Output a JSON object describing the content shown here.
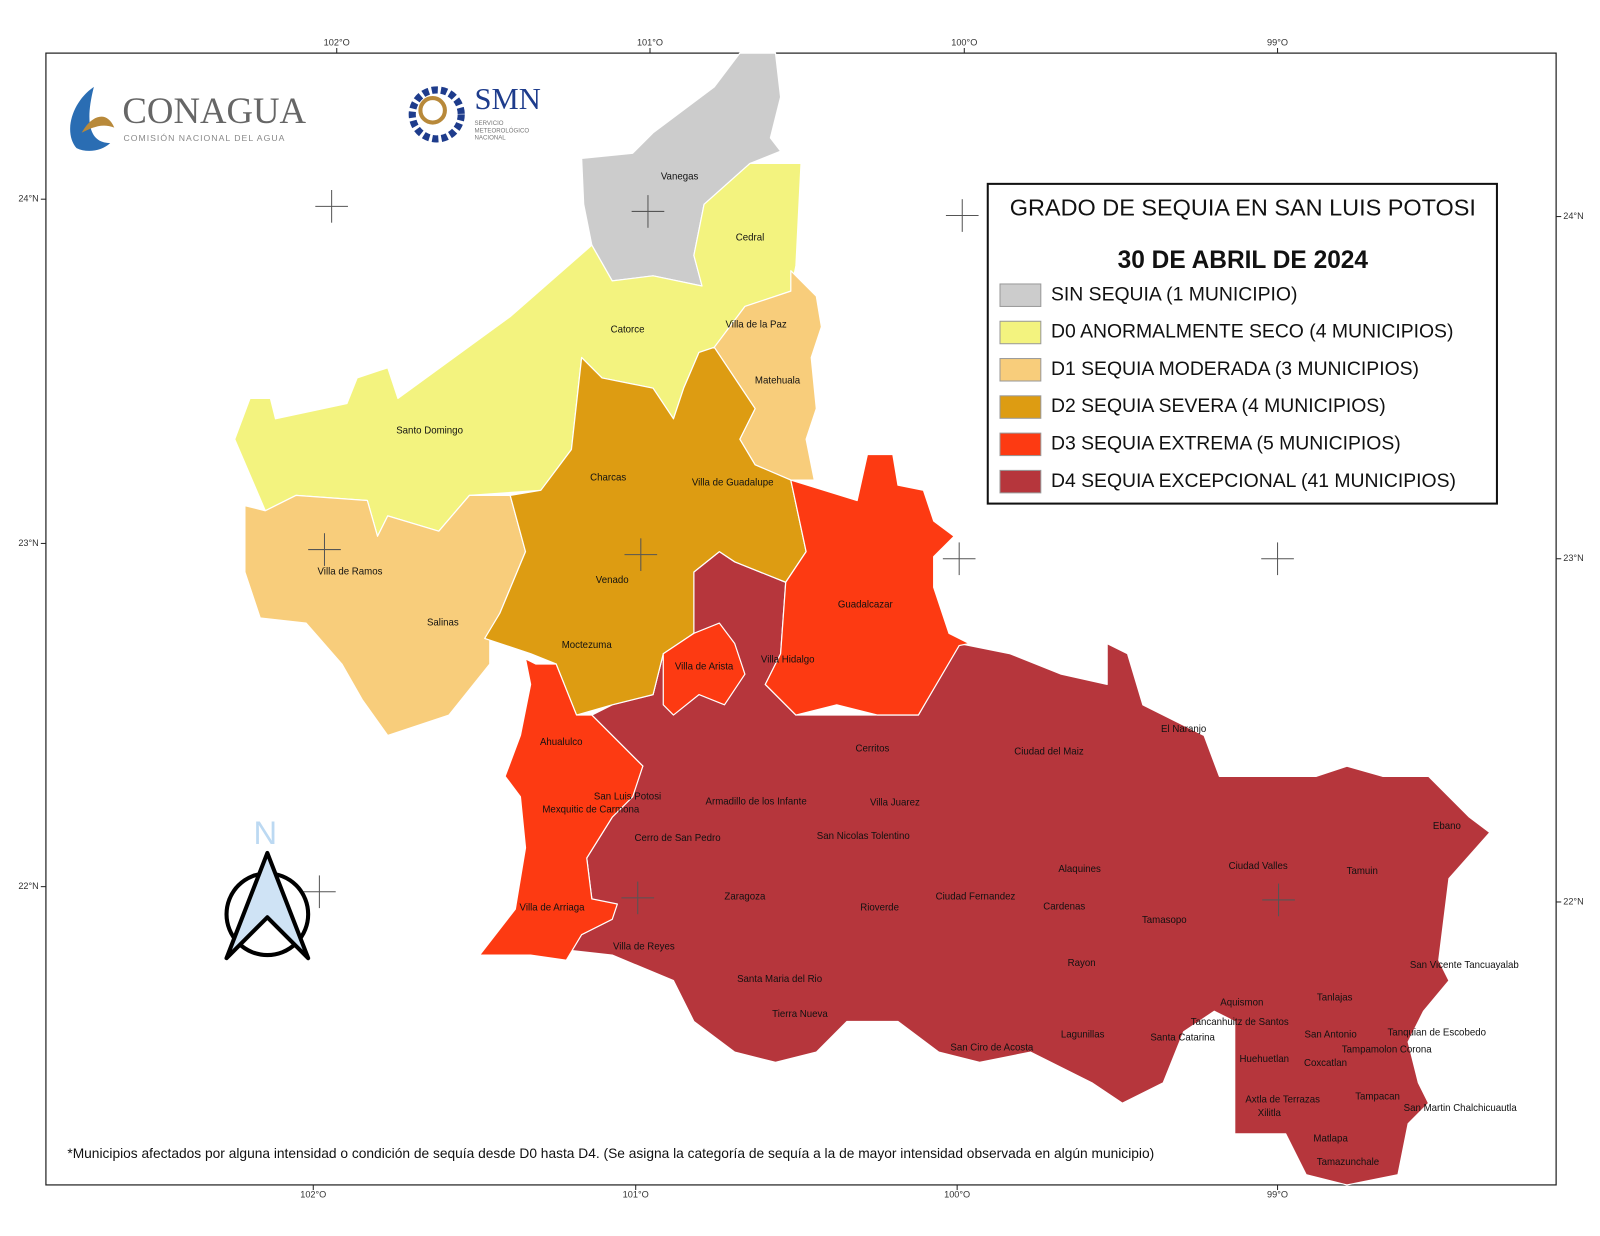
{
  "header": {
    "conagua": "CONAGUA",
    "conagua_sub": "COMISIÓN NACIONAL DEL AGUA",
    "smn": "SMN",
    "smn_sub": [
      "SERVICIO",
      "METEOROLÓGICO",
      "NACIONAL"
    ]
  },
  "legend": {
    "title": "GRADO DE SEQUIA EN SAN LUIS POTOSI",
    "date": "30 DE ABRIL DE 2024",
    "items": [
      {
        "label": "SIN SEQUIA  (1 MUNICIPIO)",
        "color": "#cccccc"
      },
      {
        "label": "D0  ANORMALMENTE SECO  (4 MUNICIPIOS)",
        "color": "#f3f37f"
      },
      {
        "label": "D1  SEQUIA MODERADA  (3 MUNICIPIOS)",
        "color": "#f8cd7b"
      },
      {
        "label": "D2  SEQUIA SEVERA  (4 MUNICIPIOS)",
        "color": "#dd9c12"
      },
      {
        "label": "D3  SEQUIA EXTREMA  (5 MUNICIPIOS)",
        "color": "#fd3a12"
      },
      {
        "label": "D4  SEQUIA EXCEPCIONAL (41 MUNICIPIOS)",
        "color": "#b6363c"
      }
    ]
  },
  "graticule": {
    "top": [
      "102°O",
      "101°O",
      "100°O",
      "99°O"
    ],
    "bottom": [
      "102°O",
      "101°O",
      "100°O",
      "99°O"
    ],
    "left": [
      "24°N",
      "23°N",
      "22°N"
    ],
    "right": [
      "24°N",
      "23°N",
      "22°N"
    ]
  },
  "north": "N",
  "municipalities": [
    "Vanegas",
    "Cedral",
    "Catorce",
    "Villa de la Paz",
    "Matehuala",
    "Santo Domingo",
    "Charcas",
    "Villa de Guadalupe",
    "Villa de Ramos",
    "Venado",
    "Salinas",
    "Guadalcazar",
    "Moctezuma",
    "Villa Hidalgo",
    "Villa de Arista",
    "El Naranjo",
    "Ahualulco",
    "Cerritos",
    "Ciudad del Maiz",
    "San Luis Potosi",
    "Armadillo de los Infante",
    "Villa Juarez",
    "Mexquitic de Carmona",
    "Ebano",
    "San Nicolas Tolentino",
    "Cerro de San Pedro",
    "Ciudad Valles",
    "Alaquines",
    "Tamuin",
    "Ciudad Fernandez",
    "Zaragoza",
    "Cardenas",
    "Rioverde",
    "Villa de Arriaga",
    "Tamasopo",
    "Villa de Reyes",
    "Rayon",
    "San Vicente Tancuayalab",
    "Santa Maria del Rio",
    "Tanlajas",
    "Aquismon",
    "Tierra Nueva",
    "Tancanhuitz de Santos",
    "Tanquian de Escobedo",
    "Lagunillas",
    "San Antonio",
    "Santa Catarina",
    "San Ciro de Acosta",
    "Tampamolon Corona",
    "Huehuetlan",
    "Coxcatlan",
    "Tampacan",
    "Axtla de Terrazas",
    "San Martin Chalchicuautla",
    "Xilitla",
    "Matlapa",
    "Tamazunchale"
  ],
  "footnote": "*Municipios afectados por alguna intensidad o condición de sequía desde D0 hasta D4. (Se asigna la categoría de sequía a la de mayor intensidad observada en algún municipio)"
}
